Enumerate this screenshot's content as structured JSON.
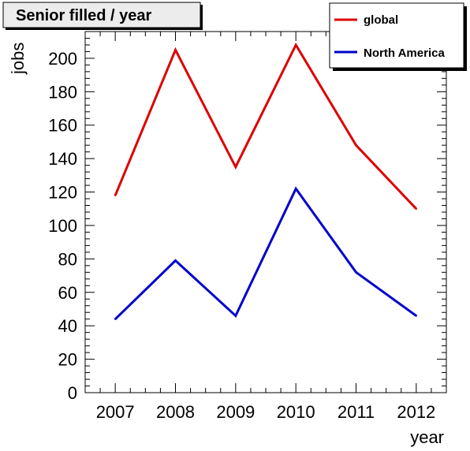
{
  "chart_data": {
    "type": "line",
    "title": "Senior filled / year",
    "xlabel": "year",
    "ylabel": "jobs",
    "x": [
      2007,
      2008,
      2009,
      2010,
      2011,
      2012
    ],
    "xlim": [
      2006.5,
      2012.5
    ],
    "ylim": [
      0,
      216
    ],
    "yticks": [
      0,
      20,
      40,
      60,
      80,
      100,
      120,
      140,
      160,
      180,
      200
    ],
    "series": [
      {
        "name": "global",
        "color": "#dd0000",
        "values": [
          118,
          205,
          135,
          208,
          148,
          110
        ]
      },
      {
        "name": "North America",
        "color": "#0000cc",
        "values": [
          44,
          79,
          46,
          122,
          72,
          46
        ]
      }
    ],
    "legend_position": "top-right",
    "grid": false
  }
}
